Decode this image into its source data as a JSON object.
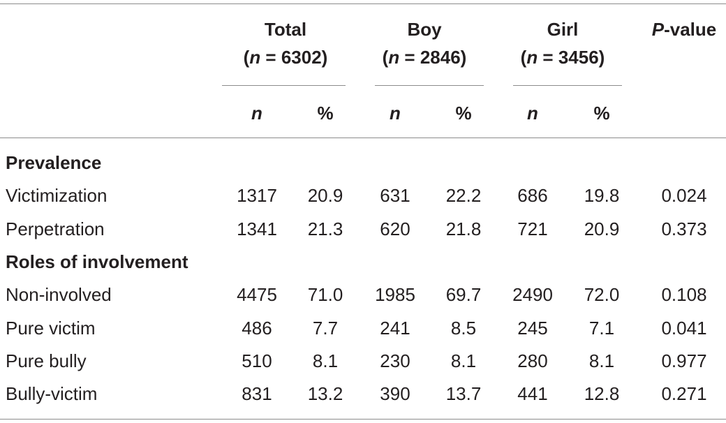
{
  "table": {
    "groups": [
      {
        "label": "Total",
        "sample": [
          "(",
          "n",
          " = 6302)"
        ]
      },
      {
        "label": "Boy",
        "sample": [
          "(",
          "n",
          " = 2846)"
        ]
      },
      {
        "label": "Girl",
        "sample": [
          "(",
          "n",
          " = 3456)"
        ]
      }
    ],
    "p_value": [
      "P",
      "-value"
    ],
    "subheaders": [
      "n",
      "%",
      "n",
      "%",
      "n",
      "%"
    ],
    "sections": [
      {
        "title": "Prevalence",
        "rows": [
          {
            "label": "Victimization",
            "cells": [
              "1317",
              "20.9",
              "631",
              "22.2",
              "686",
              "19.8",
              "0.024"
            ]
          },
          {
            "label": "Perpetration",
            "cells": [
              "1341",
              "21.3",
              "620",
              "21.8",
              "721",
              "20.9",
              "0.373"
            ]
          }
        ]
      },
      {
        "title": "Roles of involvement",
        "rows": [
          {
            "label": "Non-involved",
            "cells": [
              "4475",
              "71.0",
              "1985",
              "69.7",
              "2490",
              "72.0",
              "0.108"
            ]
          },
          {
            "label": "Pure victim",
            "cells": [
              "486",
              "7.7",
              "241",
              "8.5",
              "245",
              "7.1",
              "0.041"
            ]
          },
          {
            "label": "Pure bully",
            "cells": [
              "510",
              "8.1",
              "230",
              "8.1",
              "280",
              "8.1",
              "0.977"
            ]
          },
          {
            "label": "Bully-victim",
            "cells": [
              "831",
              "13.2",
              "390",
              "13.7",
              "441",
              "12.8",
              "0.271"
            ]
          }
        ]
      }
    ]
  }
}
